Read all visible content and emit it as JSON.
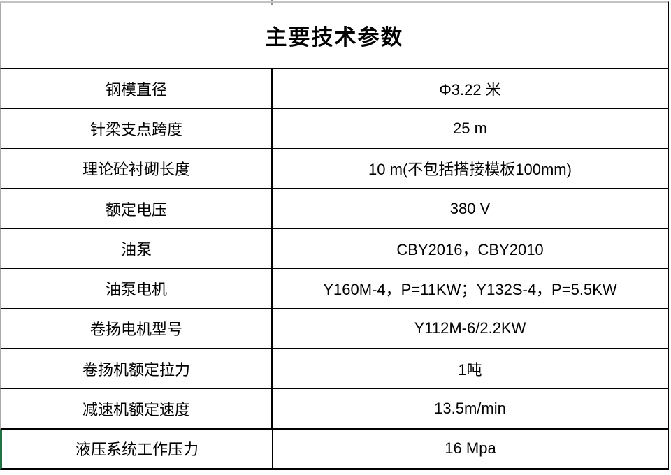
{
  "table": {
    "title": "主要技术参数",
    "rows": [
      {
        "label": "钢模直径",
        "value": "Φ3.22 米"
      },
      {
        "label": "针梁支点跨度",
        "value": "25 m"
      },
      {
        "label": "理论砼衬砌长度",
        "value": "10 m(不包括搭接模板100mm)"
      },
      {
        "label": "额定电压",
        "value": "380 V"
      },
      {
        "label": "油泵",
        "value": "CBY2016，CBY2010"
      },
      {
        "label": "油泵电机",
        "value": "Y160M-4，P=11KW；Y132S-4，P=5.5KW"
      },
      {
        "label": "卷扬电机型号",
        "value": "Y112M-6/2.2KW"
      },
      {
        "label": "卷扬机额定拉力",
        "value": "1吨"
      },
      {
        "label": "减速机额定速度",
        "value": "13.5m/min"
      },
      {
        "label": "液压系统工作压力",
        "value": "16 Mpa"
      }
    ]
  },
  "colors": {
    "table_border": "#000000",
    "gridline_gray": "#a9a9a9",
    "gridline_gray_light": "#c2c2c2",
    "accent_green": "#217346"
  }
}
